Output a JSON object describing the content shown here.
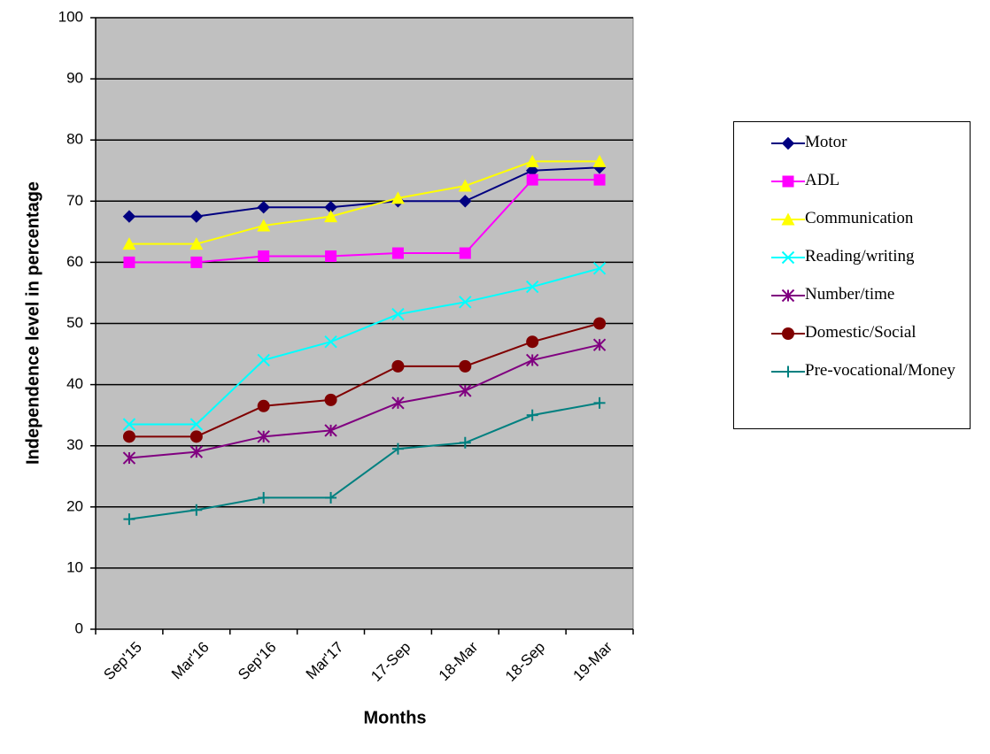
{
  "chart_data": {
    "type": "line",
    "xlabel": "Months",
    "ylabel": "Independence level in percentage",
    "categories": [
      "Sep'15",
      "Mar'16",
      "Sep'16",
      "Mar'17",
      "17-Sep",
      "18-Mar",
      "18-Sep",
      "19-Mar"
    ],
    "series": [
      {
        "name": "Motor",
        "color": "#000080",
        "marker": "diamond",
        "values": [
          67.5,
          67.5,
          69,
          69,
          70,
          70,
          75,
          75.5
        ]
      },
      {
        "name": "ADL",
        "color": "#ff00ff",
        "marker": "square",
        "values": [
          60,
          60,
          61,
          61,
          61.5,
          61.5,
          73.5,
          73.5
        ]
      },
      {
        "name": "Communication",
        "color": "#ffff00",
        "marker": "triangle",
        "values": [
          63,
          63,
          66,
          67.5,
          70.5,
          72.5,
          76.5,
          76.5
        ]
      },
      {
        "name": "Reading/writing",
        "color": "#00ffff",
        "marker": "x",
        "values": [
          33.5,
          33.5,
          44,
          47,
          51.5,
          53.5,
          56,
          59
        ]
      },
      {
        "name": "Number/time",
        "color": "#800080",
        "marker": "asterisk",
        "values": [
          28,
          29,
          31.5,
          32.5,
          37,
          39,
          44,
          46.5
        ]
      },
      {
        "name": "Domestic/Social",
        "color": "#800000",
        "marker": "circle",
        "values": [
          31.5,
          31.5,
          36.5,
          37.5,
          43,
          43,
          47,
          50
        ]
      },
      {
        "name": "Pre-vocational/Money",
        "color": "#008080",
        "marker": "plus",
        "values": [
          18,
          19.5,
          21.5,
          21.5,
          29.5,
          30.5,
          35,
          37
        ]
      }
    ],
    "ylim": [
      0,
      100
    ],
    "yticks": [
      0,
      10,
      20,
      30,
      40,
      50,
      60,
      70,
      80,
      90,
      100
    ],
    "grid": true,
    "legend": "right"
  }
}
